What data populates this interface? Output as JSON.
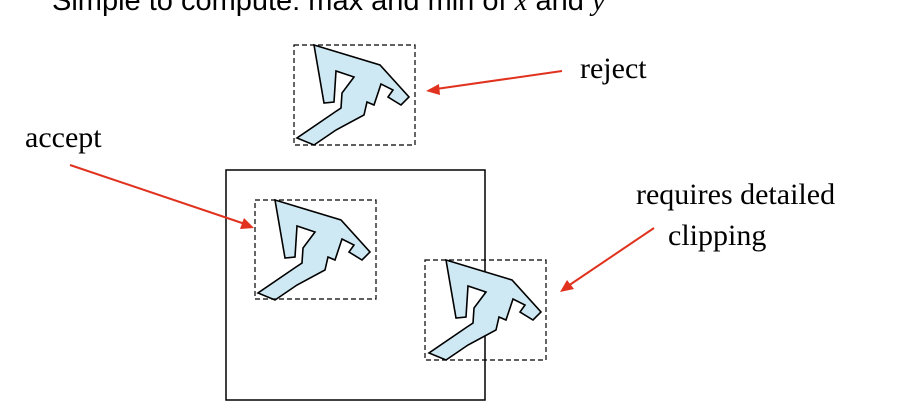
{
  "header": {
    "text_prefix": "Simple to compute: max and min of ",
    "var_x": "x",
    "text_and": " and ",
    "var_y": "y"
  },
  "labels": {
    "reject": "reject",
    "accept": "accept",
    "detailed_line1": "requires detailed",
    "detailed_line2": "clipping"
  },
  "colors": {
    "polygon_fill": "#cfe9f4",
    "arrow": "#e0321e",
    "outline": "#000000"
  },
  "icons": {
    "shape": "arrow-polygon-icon"
  }
}
